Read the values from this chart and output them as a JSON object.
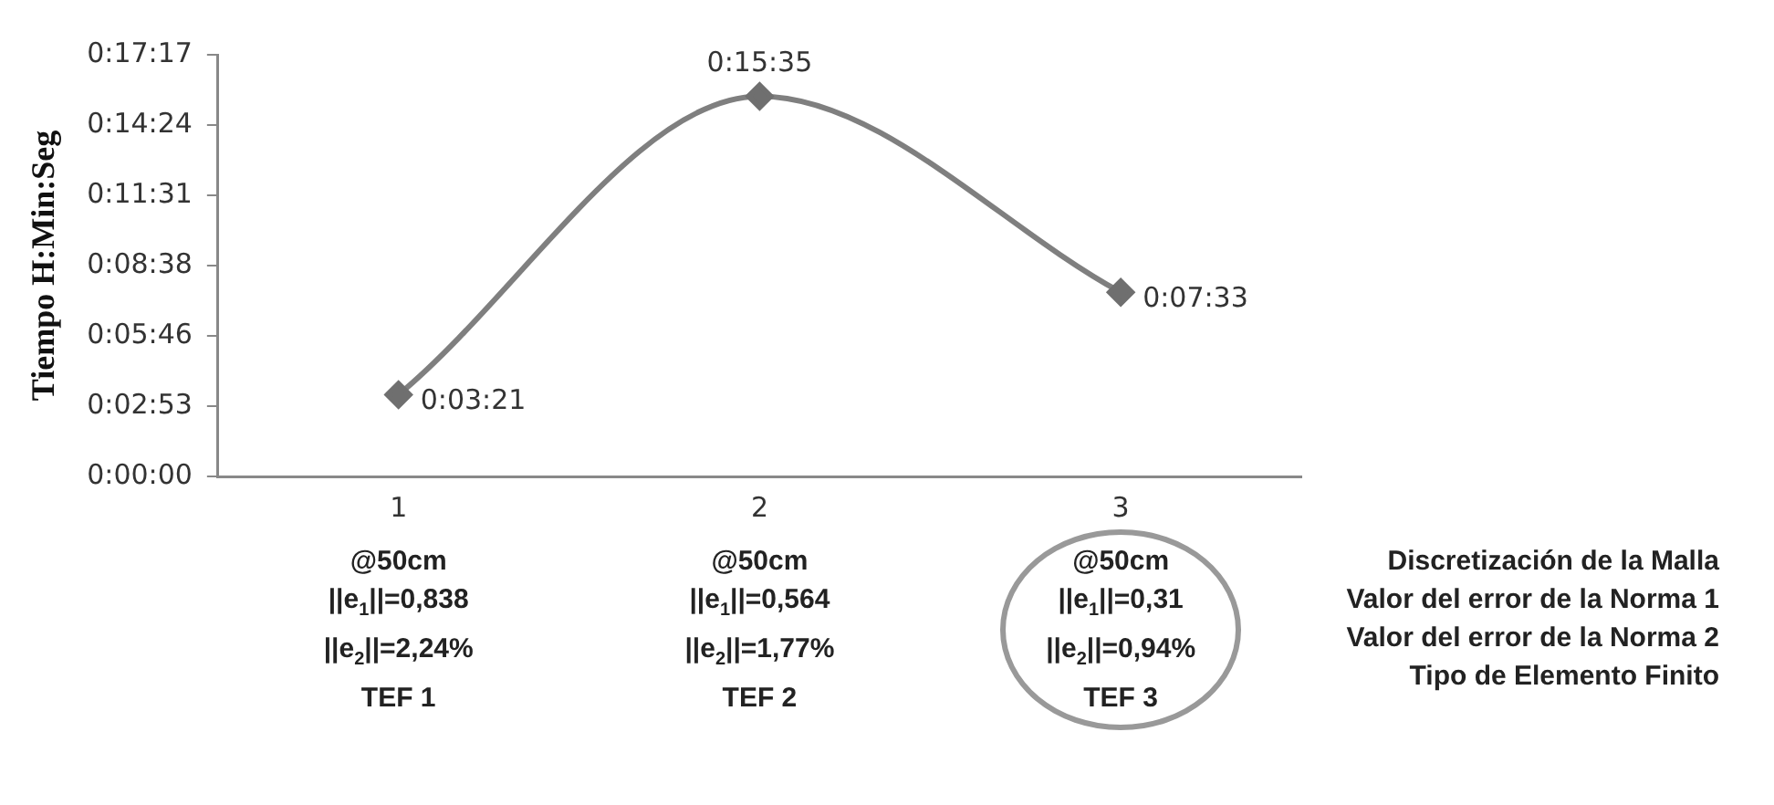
{
  "chart_data": {
    "type": "line",
    "categories": [
      "1",
      "2",
      "3"
    ],
    "series": [
      {
        "color": "#7f7f7f",
        "values": [
          0.05583,
          0.2597,
          0.1258
        ]
      }
    ],
    "value_labels": [
      "0:03:21",
      "0:15:35",
      "0:07:33"
    ],
    "ylabel": "Tiempo H:Min:Seg",
    "ylim": [
      0,
      0.288
    ],
    "yticks": [
      {
        "value": 0,
        "label": "0:00:00"
      },
      {
        "value": 0.048,
        "label": "0:02:53"
      },
      {
        "value": 0.096,
        "label": "0:05:46"
      },
      {
        "value": 0.144,
        "label": "0:08:38"
      },
      {
        "value": 0.192,
        "label": "0:11:31"
      },
      {
        "value": 0.24,
        "label": "0:14:24"
      },
      {
        "value": 0.288,
        "label": "0:17:17"
      }
    ],
    "annotations": [
      "@50cm\n||e$_{1}$||=0,838\n||e$_{2}$||=2,24%\nTEF 1",
      "@50cm\n||e$_{1}$||=0,564\n||e$_{2}$||=1,77%\nTEF 2",
      "@50cm\n||e$_{1}$||=0,31\n||e$_{2}$||=0,94%\nTEF 3",
      "Discretización de la Malla\nValor del error de la Norma 1\nValor del error de la Norma 2\nTipo de Elemento Finito"
    ],
    "grid": false,
    "legend": false,
    "marker": "diamond",
    "line_style": "solid"
  }
}
